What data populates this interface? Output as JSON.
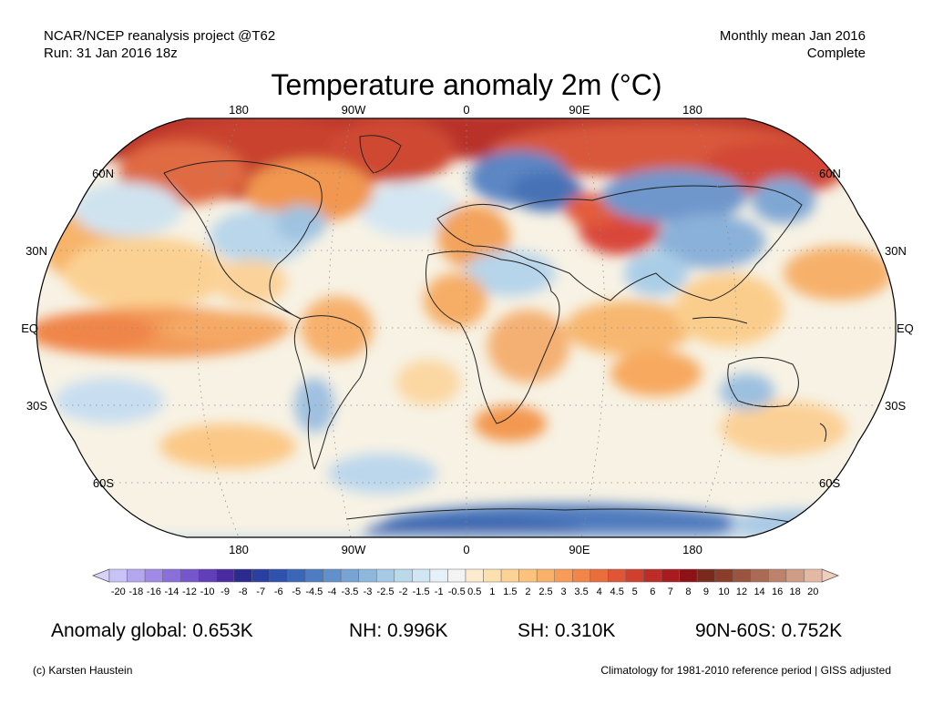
{
  "header": {
    "left_line1": "NCAR/NCEP reanalysis project @T62",
    "left_line2": "Run: 31 Jan 2016 18z",
    "right_line1": "Monthly mean Jan 2016",
    "right_line2": "Complete"
  },
  "title": "Temperature anomaly 2m (°C)",
  "map": {
    "projection": "Robinson",
    "lon_labels_top": [
      "180",
      "90W",
      "0",
      "90E",
      "180"
    ],
    "lon_labels_bottom": [
      "180",
      "90W",
      "0",
      "90E",
      "180"
    ],
    "lat_labels_left": [
      "60N",
      "30N",
      "EQ",
      "30S",
      "60S"
    ],
    "lat_labels_right": [
      "60N",
      "30N",
      "EQ",
      "30S",
      "60S"
    ],
    "gridlines": true
  },
  "colorbar": {
    "labels": [
      "-20",
      "-18",
      "-16",
      "-14",
      "-12",
      "-10",
      "-9",
      "-8",
      "-7",
      "-6",
      "-5",
      "-4.5",
      "-4",
      "-3.5",
      "-3",
      "-2.5",
      "-2",
      "-1.5",
      "-1",
      "-0.5",
      "0.5",
      "1",
      "1.5",
      "2",
      "2.5",
      "3",
      "3.5",
      "4",
      "4.5",
      "5",
      "6",
      "7",
      "8",
      "9",
      "10",
      "12",
      "14",
      "16",
      "18",
      "20"
    ],
    "colors": [
      "#c9c2f7",
      "#b5a6f0",
      "#a08ae6",
      "#8a6fda",
      "#7556cc",
      "#5f3eb8",
      "#4a2aa0",
      "#2b2b8f",
      "#2a3f9e",
      "#2f53ad",
      "#3b67b8",
      "#4d7cc2",
      "#6290cb",
      "#78a4d4",
      "#8fb7dc",
      "#a6c9e4",
      "#bcd9ec",
      "#d1e6f3",
      "#e5f0f9",
      "#f3f3f3",
      "#fbecd0",
      "#fde0b0",
      "#fcd296",
      "#fbc27e",
      "#f9b06a",
      "#f69c58",
      "#f1854a",
      "#ea6d3e",
      "#df5535",
      "#d03f2e",
      "#be2c27",
      "#a81c20",
      "#8f1118",
      "#7a2a1c",
      "#8a3d2a",
      "#9a5440",
      "#ab6a55",
      "#bd826c",
      "#cf9c86",
      "#e3b9a5"
    ]
  },
  "stats": {
    "global": "Anomaly global: 0.653K",
    "nh": "NH: 0.996K",
    "sh": "SH: 0.310K",
    "arctic": "90N-60S: 0.752K"
  },
  "footer": {
    "left": "(c) Karsten Haustein",
    "right": "Climatology for 1981-2010 reference period | GISS adjusted"
  }
}
